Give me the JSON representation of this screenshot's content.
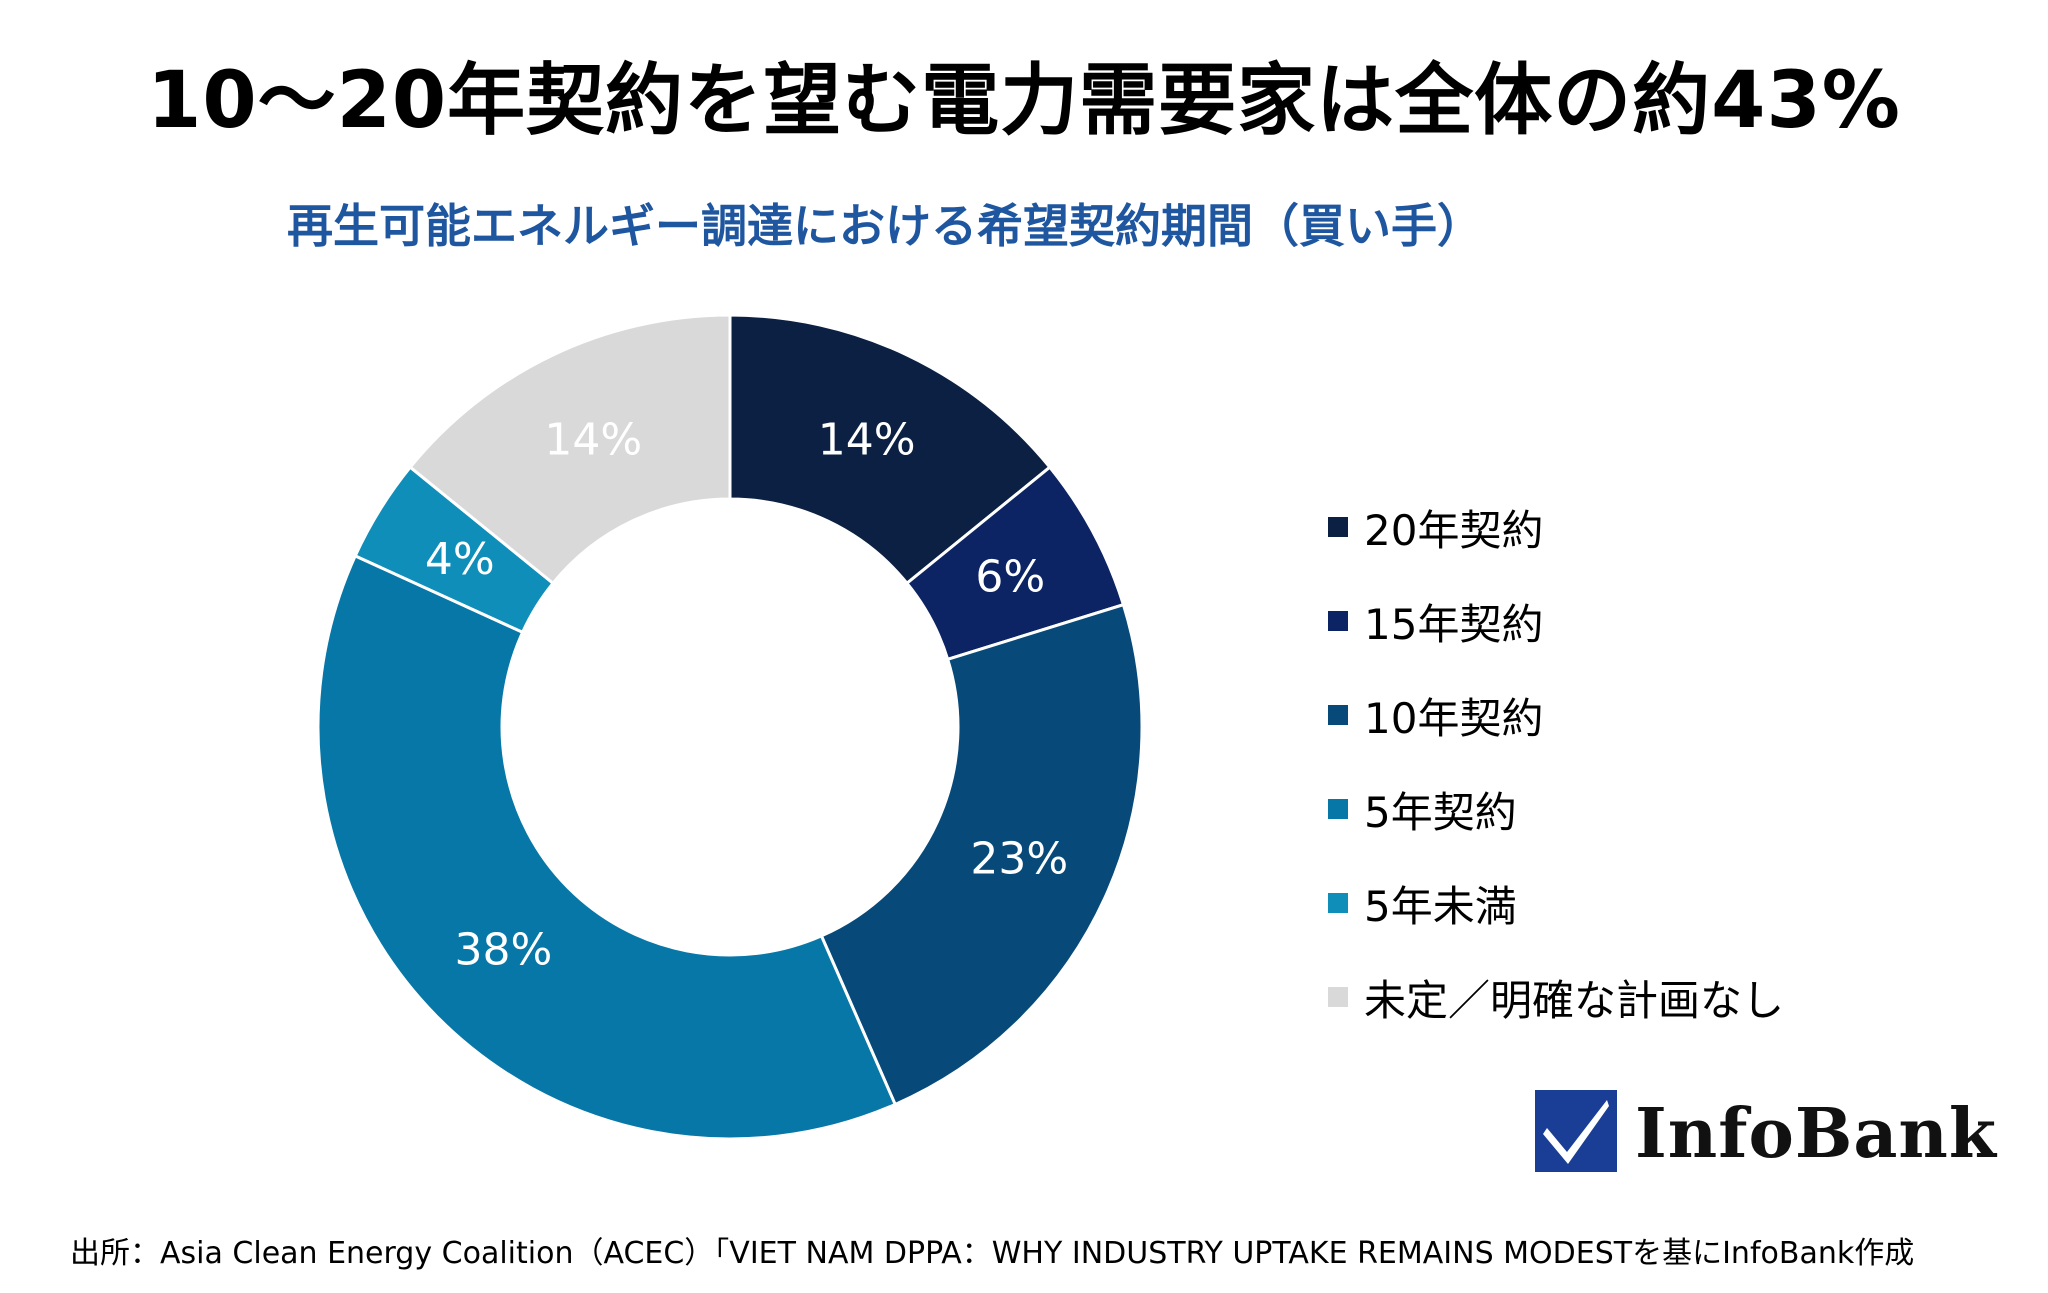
{
  "header": {
    "title": "10〜20年契約を望む電力需要家は全体の約43%",
    "subtitle": "再生可能エネルギー調達における希望契約期間（買い手）"
  },
  "chart_data": {
    "type": "pie",
    "variant": "donut",
    "title": "再生可能エネルギー調達における希望契約期間（買い手）",
    "legend_position": "right",
    "slices": [
      {
        "name": "20年契約",
        "value": 14,
        "label": "14%",
        "color": "#0b2042"
      },
      {
        "name": "15年契約",
        "value": 6,
        "label": "6%",
        "color": "#0c2463"
      },
      {
        "name": "10年契約",
        "value": 23,
        "label": "23%",
        "color": "#074a7a"
      },
      {
        "name": "5年契約",
        "value": 38,
        "label": "38%",
        "color": "#0777a8"
      },
      {
        "name": "5年未満",
        "value": 4,
        "label": "4%",
        "color": "#0e8eb8"
      },
      {
        "name": "未定／明確な計画なし",
        "value": 14,
        "label": "14%",
        "color": "#d9d9d9"
      }
    ]
  },
  "logo": {
    "text": "InfoBank",
    "color": "#1a3e96"
  },
  "source": "出所：Asia Clean Energy Coalition（ACEC）「VIET NAM DPPA：WHY INDUSTRY UPTAKE REMAINS MODESTを基にInfoBank作成"
}
